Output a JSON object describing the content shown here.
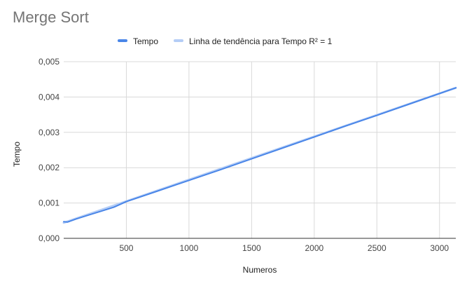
{
  "chart_data": {
    "type": "line",
    "title": "Merge Sort",
    "xlabel": "Numeros",
    "ylabel": "Tempo",
    "xlim": [
      0,
      3130
    ],
    "ylim": [
      0,
      0.005
    ],
    "x_ticks": [
      500,
      1000,
      1500,
      2000,
      2500,
      3000
    ],
    "x_tick_labels": [
      "500",
      "1000",
      "1500",
      "2000",
      "2500",
      "3000"
    ],
    "y_ticks": [
      0,
      0.001,
      0.002,
      0.003,
      0.004,
      0.005
    ],
    "y_tick_labels": [
      "0,000",
      "0,001",
      "0,002",
      "0,003",
      "0,004",
      "0,005"
    ],
    "grid": true,
    "legend_position": "top",
    "series": [
      {
        "name": "Tempo",
        "color": "#4a86e8",
        "x": [
          0,
          30,
          100,
          200,
          300,
          400,
          500,
          750,
          1000,
          1250,
          1500,
          1750,
          2000,
          2250,
          2500,
          2750,
          3000,
          3130
        ],
        "values": [
          0.00047,
          0.00046,
          0.00055,
          0.00066,
          0.00077,
          0.00088,
          0.00104,
          0.00134,
          0.00164,
          0.00194,
          0.00225,
          0.00256,
          0.00287,
          0.00318,
          0.00348,
          0.00379,
          0.0041,
          0.00426
        ]
      },
      {
        "name": "Linha de tendência para Tempo R² = 1",
        "color": "#b4cdf6",
        "x": [
          0,
          3130
        ],
        "values": [
          0.00044,
          0.00426
        ]
      }
    ]
  }
}
